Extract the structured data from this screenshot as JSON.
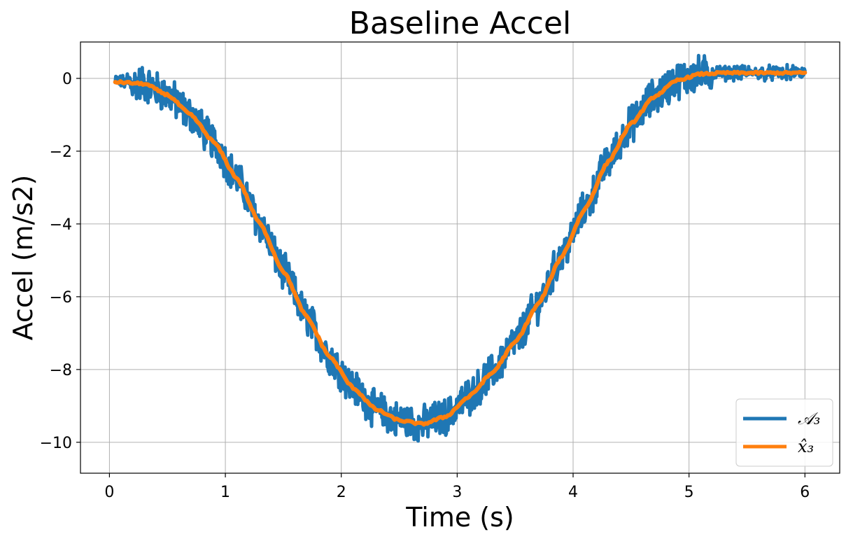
{
  "chart_data": {
    "type": "line",
    "title": "Baseline Accel",
    "xlabel": "Time (s)",
    "ylabel": "Accel (m/s2)",
    "xlim": [
      -0.25,
      6.3
    ],
    "ylim": [
      -10.85,
      1.0
    ],
    "xticks": [
      0,
      1,
      2,
      3,
      4,
      5,
      6
    ],
    "xtick_labels": [
      "0",
      "1",
      "2",
      "3",
      "4",
      "5",
      "6"
    ],
    "yticks": [
      0,
      -2,
      -4,
      -6,
      -8,
      -10
    ],
    "ytick_labels": [
      "0",
      "−2",
      "−4",
      "−6",
      "−8",
      "−10"
    ],
    "grid": true,
    "legend_position": "lower-right",
    "series": [
      {
        "name": "𝒜₃",
        "color": "#1f77b4",
        "noisy": true,
        "x": [
          0.05,
          0.3,
          0.5,
          0.7,
          0.9,
          1.1,
          1.3,
          1.5,
          1.7,
          1.9,
          2.1,
          2.3,
          2.5,
          2.7,
          2.9,
          3.1,
          3.3,
          3.5,
          3.7,
          3.9,
          4.1,
          4.3,
          4.5,
          4.7,
          4.9,
          5.1,
          5.3,
          5.6,
          6.0
        ],
        "y": [
          -0.1,
          -0.15,
          -0.45,
          -1.0,
          -1.75,
          -2.75,
          -4.0,
          -5.3,
          -6.55,
          -7.65,
          -8.5,
          -9.1,
          -9.4,
          -9.5,
          -9.3,
          -8.75,
          -8.1,
          -7.25,
          -6.2,
          -4.9,
          -3.6,
          -2.3,
          -1.25,
          -0.5,
          -0.05,
          0.12,
          0.15,
          0.15,
          0.15
        ]
      },
      {
        "name": "x̂₃",
        "color": "#ff7f0e",
        "noisy": false,
        "x": [
          0.05,
          0.3,
          0.5,
          0.7,
          0.9,
          1.1,
          1.3,
          1.5,
          1.7,
          1.9,
          2.1,
          2.3,
          2.5,
          2.7,
          2.9,
          3.1,
          3.3,
          3.5,
          3.7,
          3.9,
          4.1,
          4.3,
          4.5,
          4.7,
          4.9,
          5.1,
          5.3,
          5.6,
          6.0
        ],
        "y": [
          -0.1,
          -0.15,
          -0.45,
          -1.0,
          -1.75,
          -2.75,
          -4.0,
          -5.3,
          -6.55,
          -7.65,
          -8.5,
          -9.1,
          -9.4,
          -9.5,
          -9.3,
          -8.75,
          -8.1,
          -7.25,
          -6.2,
          -4.9,
          -3.6,
          -2.3,
          -1.25,
          -0.5,
          -0.05,
          0.12,
          0.15,
          0.15,
          0.15
        ]
      }
    ]
  }
}
